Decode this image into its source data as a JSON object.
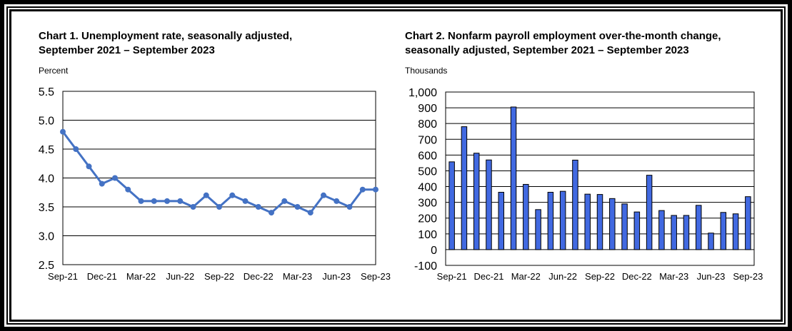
{
  "chart_data": [
    {
      "type": "line",
      "title": "Chart 1. Unemployment rate, seasonally adjusted,",
      "subtitle": "September 2021 – September 2023",
      "unit_label": "Percent",
      "categories": [
        "Sep-21",
        "Oct-21",
        "Nov-21",
        "Dec-21",
        "Jan-22",
        "Feb-22",
        "Mar-22",
        "Apr-22",
        "May-22",
        "Jun-22",
        "Jul-22",
        "Aug-22",
        "Sep-22",
        "Oct-22",
        "Nov-22",
        "Dec-22",
        "Jan-23",
        "Feb-23",
        "Mar-23",
        "Apr-23",
        "May-23",
        "Jun-23",
        "Jul-23",
        "Aug-23",
        "Sep-23"
      ],
      "values": [
        4.8,
        4.5,
        4.2,
        3.9,
        4.0,
        3.8,
        3.6,
        3.6,
        3.6,
        3.6,
        3.5,
        3.7,
        3.5,
        3.7,
        3.6,
        3.5,
        3.4,
        3.6,
        3.5,
        3.4,
        3.7,
        3.6,
        3.5,
        3.8,
        3.8
      ],
      "x_tick_labels": [
        "Sep-21",
        "Dec-21",
        "Mar-22",
        "Jun-22",
        "Sep-22",
        "Dec-22",
        "Mar-23",
        "Jun-23",
        "Sep-23"
      ],
      "y_tick_labels": [
        "5.5",
        "5.0",
        "4.5",
        "4.0",
        "3.5",
        "3.0",
        "2.5"
      ],
      "ylim": [
        2.5,
        5.5
      ],
      "grid": true,
      "series_color": "#4472c4"
    },
    {
      "type": "bar",
      "title": "Chart 2. Nonfarm payroll employment over-the-month change,",
      "subtitle": "seasonally adjusted, September 2021 – September 2023",
      "unit_label": "Thousands",
      "categories": [
        "Sep-21",
        "Oct-21",
        "Nov-21",
        "Dec-21",
        "Jan-22",
        "Feb-22",
        "Mar-22",
        "Apr-22",
        "May-22",
        "Jun-22",
        "Jul-22",
        "Aug-22",
        "Sep-22",
        "Oct-22",
        "Nov-22",
        "Dec-22",
        "Jan-23",
        "Feb-23",
        "Mar-23",
        "Apr-23",
        "May-23",
        "Jun-23",
        "Jul-23",
        "Aug-23",
        "Sep-23"
      ],
      "values": [
        557,
        780,
        612,
        569,
        364,
        905,
        414,
        254,
        364,
        370,
        568,
        352,
        350,
        324,
        290,
        239,
        472,
        248,
        217,
        217,
        281,
        105,
        236,
        227,
        336
      ],
      "x_tick_labels": [
        "Sep-21",
        "Dec-21",
        "Mar-22",
        "Jun-22",
        "Sep-22",
        "Dec-22",
        "Mar-23",
        "Jun-23",
        "Sep-23"
      ],
      "y_tick_labels": [
        "1,000",
        "900",
        "800",
        "700",
        "600",
        "500",
        "400",
        "300",
        "200",
        "100",
        "0",
        "-100"
      ],
      "ylim": [
        -100,
        1000
      ],
      "grid": true,
      "series_color": "#4169e1"
    }
  ]
}
